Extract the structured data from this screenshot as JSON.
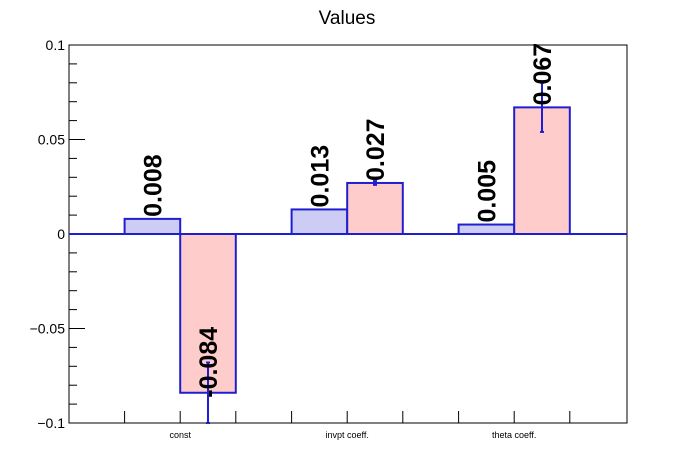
{
  "chart_data": {
    "type": "bar",
    "title": "Values",
    "xlabel": "",
    "ylabel": "",
    "categories": [
      "const",
      "invpt coeff.",
      "theta coeff."
    ],
    "ylim": [
      -0.1,
      0.1
    ],
    "yticks": [
      -0.1,
      -0.05,
      0,
      0.05,
      0.1
    ],
    "ytick_labels": [
      "−0.1",
      "−0.05",
      "0",
      "0.05",
      "0.1"
    ],
    "grid": false,
    "legend": "none",
    "series": [
      {
        "values": [
          0.008,
          0.013,
          0.005
        ],
        "labels": [
          "0.008",
          "0.013",
          "0.005"
        ],
        "errors": [
          null,
          null,
          null
        ],
        "fill": "#ccccf5",
        "stroke": "#1f1fd0"
      },
      {
        "values": [
          -0.084,
          0.027,
          0.067
        ],
        "labels": [
          "-0.084",
          "0.027",
          "0.067"
        ],
        "errors": [
          0.016,
          0.001,
          0.013
        ],
        "fill": "#ffcccc",
        "stroke": "#1f1fd0"
      }
    ],
    "axis_color": "#000000",
    "zero_line_color": "#1f1fd0"
  }
}
